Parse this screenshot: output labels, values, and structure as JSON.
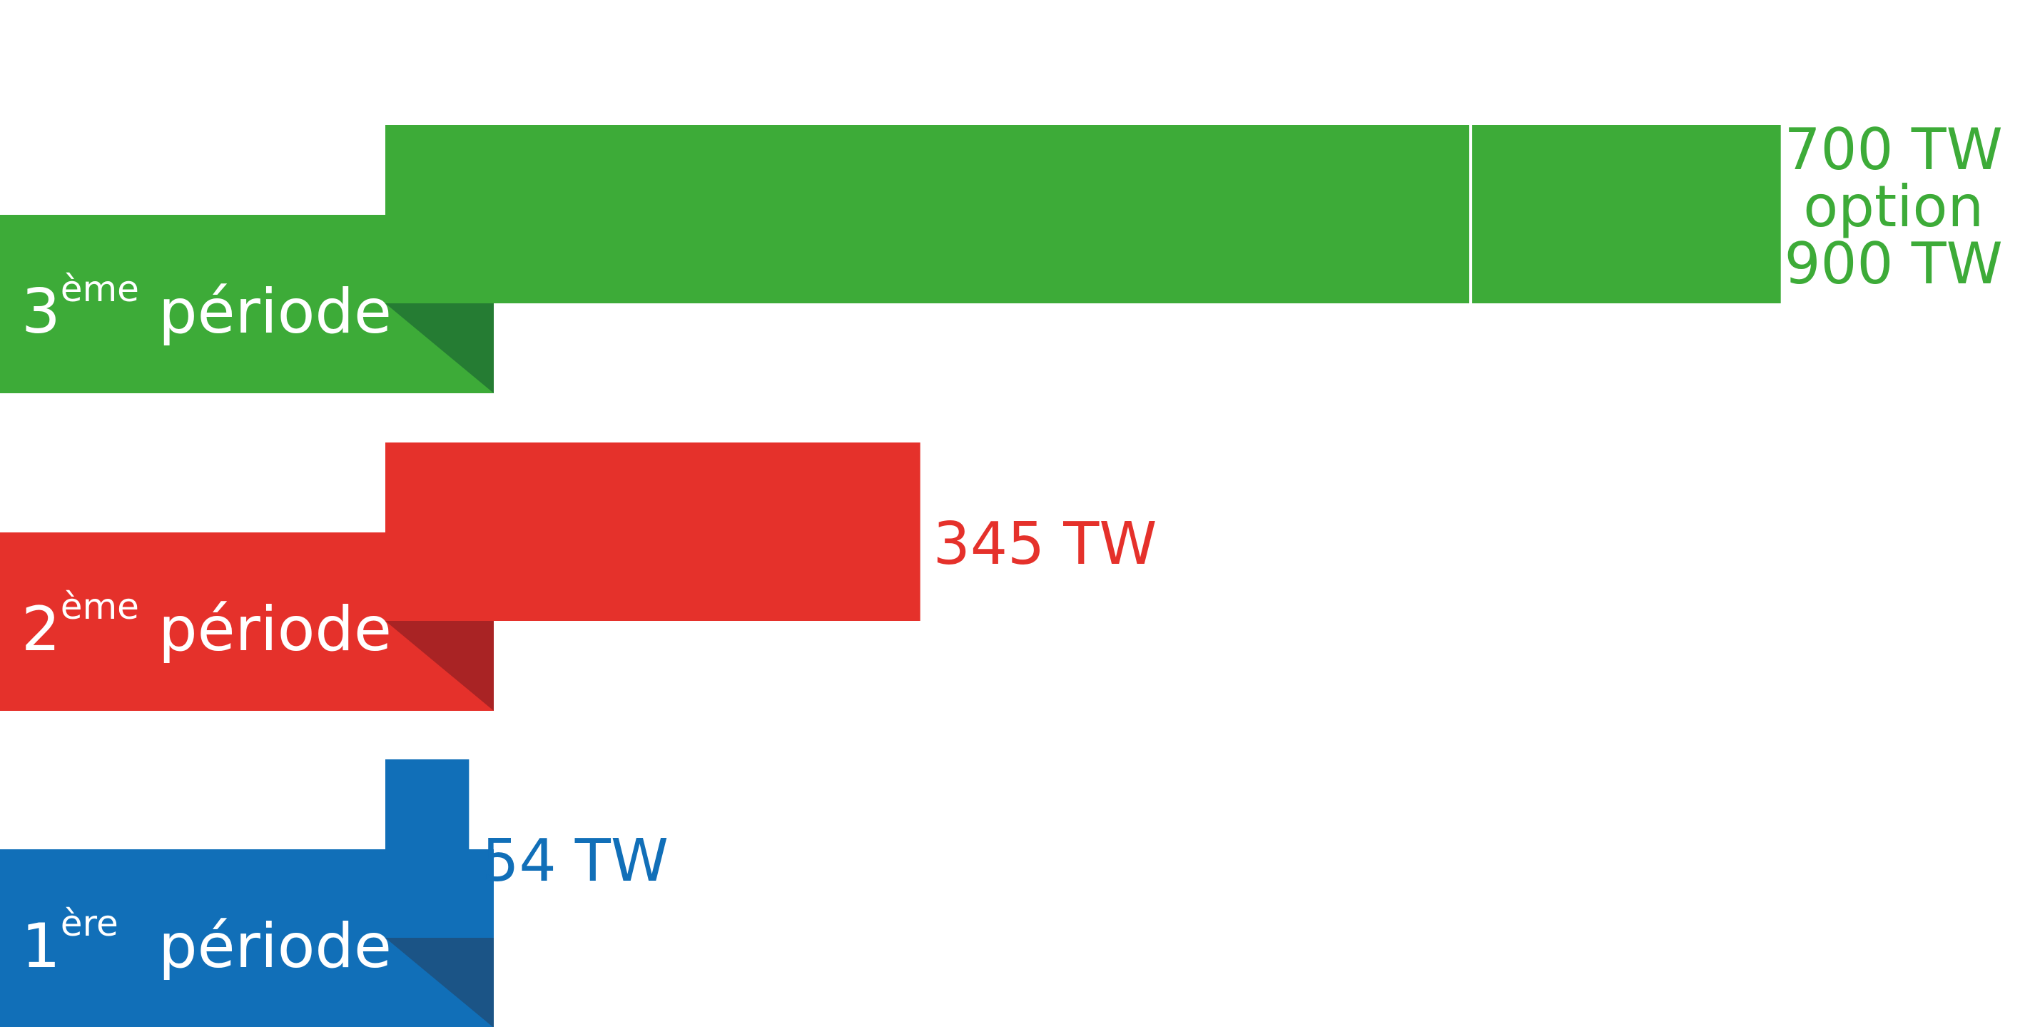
{
  "chart_data": {
    "type": "bar",
    "orientation": "horizontal",
    "title": "",
    "xlabel": "",
    "ylabel": "",
    "unit": "TW",
    "xlim": [
      0,
      1000
    ],
    "grid": false,
    "legend": "none",
    "categories": [
      {
        "number": "3",
        "superscript": "ème",
        "word": "période"
      },
      {
        "number": "2",
        "superscript": "ème",
        "word": "période"
      },
      {
        "number": "1",
        "superscript": "ère",
        "word": "période"
      }
    ],
    "series": [
      {
        "values": [
          900,
          345,
          54
        ],
        "base_values": [
          700,
          345,
          54
        ],
        "option_values": [
          900,
          null,
          null
        ],
        "data_labels": [
          [
            "700 TW",
            "option",
            "900 TW"
          ],
          [
            "345 TW"
          ],
          [
            "54 TW"
          ]
        ],
        "colors": [
          "#3dab38",
          "#e5312b",
          "#116fb8"
        ],
        "fold_colors": [
          "#257c33",
          "#a92324",
          "#1b5486"
        ]
      }
    ]
  }
}
